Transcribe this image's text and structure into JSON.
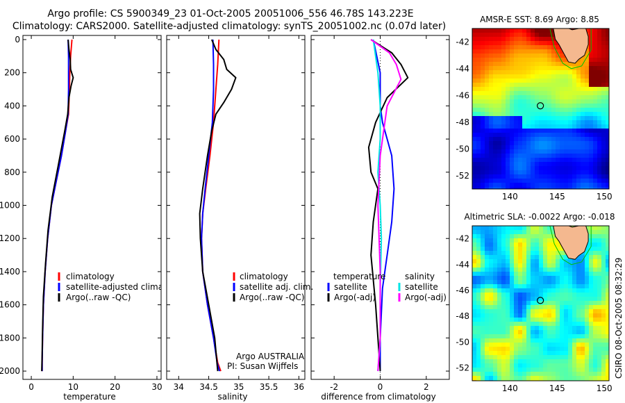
{
  "header": {
    "title_line1": "Argo profile: CS 5900349_23 01-Oct-2005 20051006_556 46.78S 143.223E",
    "title_line2": "Climatology: CARS2000. Satellite-adjusted climatology: synTS_20051002.nc (0.07d later)"
  },
  "colors": {
    "climatology": "#ff0000",
    "satellite": "#0000ff",
    "argo": "#000000",
    "argo_adj_salinity": "#ff00ff",
    "satellite_salinity": "#00e5e5",
    "coast_outline": "#00c000",
    "land": "#f4b88f"
  },
  "chart_data": [
    {
      "type": "line",
      "id": "temperature-profile",
      "xlabel": "temperature",
      "ylabel": "",
      "xlim": [
        -2,
        31
      ],
      "ylim": [
        2050,
        0
      ],
      "y_reversed": true,
      "xticks": [
        0,
        10,
        20,
        30
      ],
      "yticks": [
        0,
        200,
        400,
        600,
        800,
        1000,
        1200,
        1400,
        1600,
        1800,
        2000
      ],
      "series": [
        {
          "name": "climatology",
          "color": "#ff0000",
          "x": [
            9.7,
            9.4,
            9.2,
            9.1,
            8.9,
            8.2,
            7.2,
            6.0,
            4.8,
            3.9,
            3.3,
            2.9,
            2.7,
            2.6,
            2.6
          ],
          "y": [
            0,
            100,
            200,
            300,
            450,
            550,
            700,
            850,
            1000,
            1200,
            1400,
            1600,
            1800,
            1950,
            2000
          ]
        },
        {
          "name": "satellite-adjusted climatology",
          "color": "#0000ff",
          "x": [
            8.8,
            8.9,
            8.9,
            8.9,
            8.8,
            8.2,
            7.2,
            6.0,
            4.8,
            3.9,
            3.3,
            2.9,
            2.7,
            2.6,
            2.6
          ],
          "y": [
            0,
            100,
            200,
            300,
            450,
            550,
            700,
            850,
            1000,
            1200,
            1400,
            1600,
            1800,
            1950,
            2000
          ]
        },
        {
          "name": "Argo(..raw -QC)",
          "color": "#000000",
          "x": [
            8.8,
            9.0,
            9.3,
            9.4,
            10.0,
            9.5,
            9.0,
            8.7,
            8.0,
            6.5,
            5.0,
            4.0,
            3.4,
            2.9,
            2.7,
            2.6,
            2.5
          ],
          "y": [
            0,
            60,
            120,
            180,
            230,
            280,
            350,
            450,
            550,
            750,
            950,
            1150,
            1350,
            1550,
            1750,
            1900,
            2000
          ]
        }
      ],
      "legend": {
        "position": "lower-right",
        "entries": [
          "climatology",
          "satellite-adjusted climatology",
          "Argo(..raw -QC)"
        ]
      }
    },
    {
      "type": "line",
      "id": "salinity-profile",
      "xlabel": "salinity",
      "xlim": [
        33.8,
        36.1
      ],
      "ylim": [
        2050,
        0
      ],
      "y_reversed": true,
      "xticks": [
        34,
        34.5,
        35,
        35.5,
        36
      ],
      "series": [
        {
          "name": "climatology",
          "color": "#ff0000",
          "x": [
            34.67,
            34.65,
            34.62,
            34.58,
            34.52,
            34.45,
            34.4,
            34.38,
            34.4,
            34.48,
            34.58,
            34.65,
            34.7
          ],
          "y": [
            0,
            150,
            300,
            500,
            700,
            900,
            1050,
            1200,
            1400,
            1600,
            1800,
            1950,
            2000
          ]
        },
        {
          "name": "satellite adj. clim.",
          "color": "#0000ff",
          "x": [
            34.57,
            34.58,
            34.58,
            34.56,
            34.5,
            34.44,
            34.4,
            34.38,
            34.4,
            34.48,
            34.58,
            34.64,
            34.68
          ],
          "y": [
            0,
            150,
            300,
            500,
            700,
            900,
            1050,
            1200,
            1400,
            1600,
            1800,
            1950,
            2000
          ]
        },
        {
          "name": "Argo(..raw -QC)",
          "color": "#000000",
          "x": [
            34.55,
            34.62,
            34.75,
            34.8,
            34.95,
            34.88,
            34.75,
            34.62,
            34.55,
            34.48,
            34.4,
            34.35,
            34.36,
            34.4,
            34.5,
            34.6,
            34.65
          ],
          "y": [
            0,
            60,
            120,
            180,
            230,
            300,
            380,
            450,
            550,
            700,
            900,
            1050,
            1200,
            1400,
            1600,
            1800,
            2000
          ]
        }
      ],
      "annotation_line1": "Argo AUSTRALIA",
      "annotation_line2": "PI: Susan Wijffels",
      "legend": {
        "position": "lower-right",
        "entries": [
          "climatology",
          "satellite adj. clim.",
          "Argo(..raw -QC)"
        ]
      }
    },
    {
      "type": "line",
      "id": "difference-profile",
      "xlabel": "difference from climatology",
      "xlim": [
        -3,
        3
      ],
      "ylim": [
        2050,
        0
      ],
      "y_reversed": true,
      "xticks": [
        -2,
        0,
        2
      ],
      "series": [
        {
          "name": "temperature satellite",
          "color": "#0000ff",
          "x": [
            -0.3,
            0.0,
            0.0,
            0.1,
            0.3,
            0.5,
            0.6,
            0.5,
            0.3,
            0.1,
            0.0,
            0.0
          ],
          "y": [
            0,
            200,
            400,
            500,
            600,
            700,
            900,
            1100,
            1300,
            1500,
            1800,
            2000
          ]
        },
        {
          "name": "temperature Argo(-adj)",
          "color": "#000000",
          "x": [
            -0.4,
            0.5,
            0.9,
            1.2,
            0.3,
            -0.2,
            -0.5,
            -0.4,
            -0.1,
            -0.3,
            -0.4,
            -0.2,
            0.0
          ],
          "y": [
            0,
            80,
            150,
            230,
            350,
            500,
            650,
            800,
            900,
            1100,
            1300,
            1600,
            2000
          ]
        },
        {
          "name": "salinity satellite",
          "color": "#00e5e5",
          "x": [
            -0.3,
            -0.1,
            0.0,
            0.0,
            -0.1,
            0.0,
            0.05,
            0.0,
            0.0,
            -0.1
          ],
          "y": [
            0,
            200,
            400,
            600,
            800,
            1000,
            1200,
            1500,
            1800,
            2000
          ]
        },
        {
          "name": "salinity Argo(-adj)",
          "color": "#ff00ff",
          "x": [
            -0.4,
            0.4,
            0.7,
            0.9,
            0.3,
            0.0,
            -0.1,
            0.0,
            0.0,
            -0.1
          ],
          "y": [
            0,
            80,
            150,
            240,
            400,
            700,
            1000,
            1400,
            1800,
            2000
          ]
        }
      ],
      "legend_temperature_label": "temperature",
      "legend_salinity_label": "salinity",
      "legend": {
        "position": "lower-center",
        "entries": [
          "satellite",
          "Argo(-adj)",
          "satellite",
          "Argo(-adj)"
        ]
      }
    },
    {
      "type": "heatmap",
      "id": "sst-map",
      "title": "AMSR-E SST: 8.69 Argo: 8.85",
      "xlim": [
        136,
        150.5
      ],
      "ylim": [
        -53,
        -41
      ],
      "xticks": [
        140,
        145,
        150
      ],
      "yticks": [
        -42,
        -44,
        -46,
        -48,
        -50,
        -52
      ],
      "float_position": {
        "lon": 143.223,
        "lat": -46.78
      }
    },
    {
      "type": "heatmap",
      "id": "sla-map",
      "title": "Altimetric SLA: -0.0022 Argo: -0.018",
      "xlim": [
        136,
        150.5
      ],
      "ylim": [
        -53,
        -41
      ],
      "xticks": [
        140,
        145,
        150
      ],
      "yticks": [
        -42,
        -44,
        -46,
        -48,
        -50,
        -52
      ],
      "float_position": {
        "lon": 143.223,
        "lat": -46.78
      }
    }
  ],
  "footer": {
    "stamp": "CSIRO 08-Oct-2005 08:32:29"
  }
}
